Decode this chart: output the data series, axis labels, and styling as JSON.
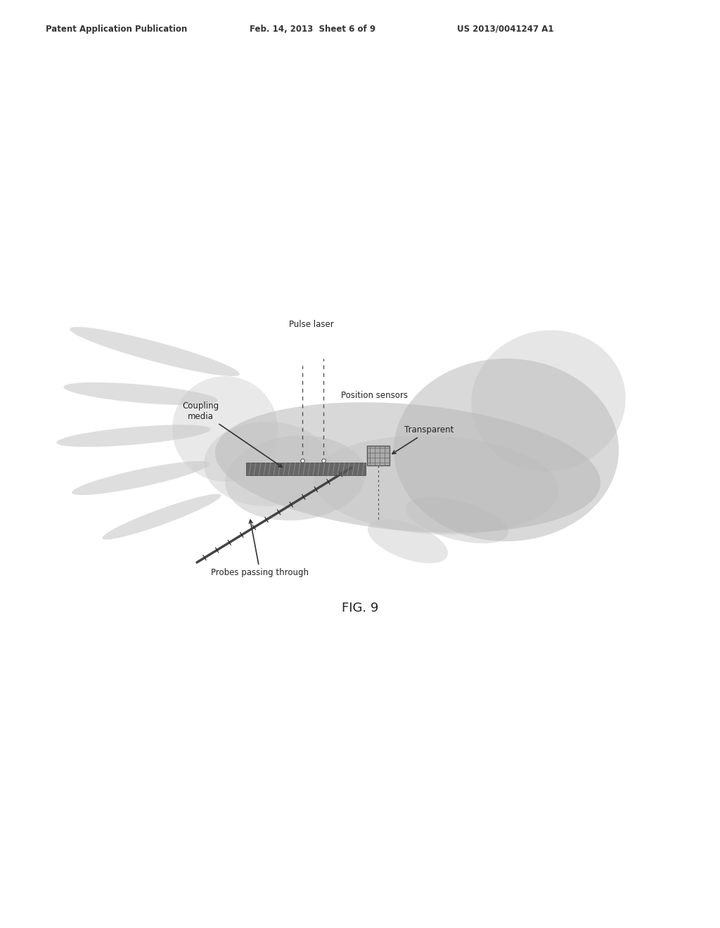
{
  "title": "",
  "fig_label": "FIG. 9",
  "header_left": "Patent Application Publication",
  "header_center": "Feb. 14, 2013  Sheet 6 of 9",
  "header_right": "US 2013/0041247 A1",
  "background_color": "#ffffff",
  "labels": {
    "pulse_laser": "Pulse laser",
    "coupling_media": "Coupling\nmedia",
    "position_sensors": "Position sensors",
    "transparent": "Transparent",
    "probes_passing": "Probes passing through"
  }
}
